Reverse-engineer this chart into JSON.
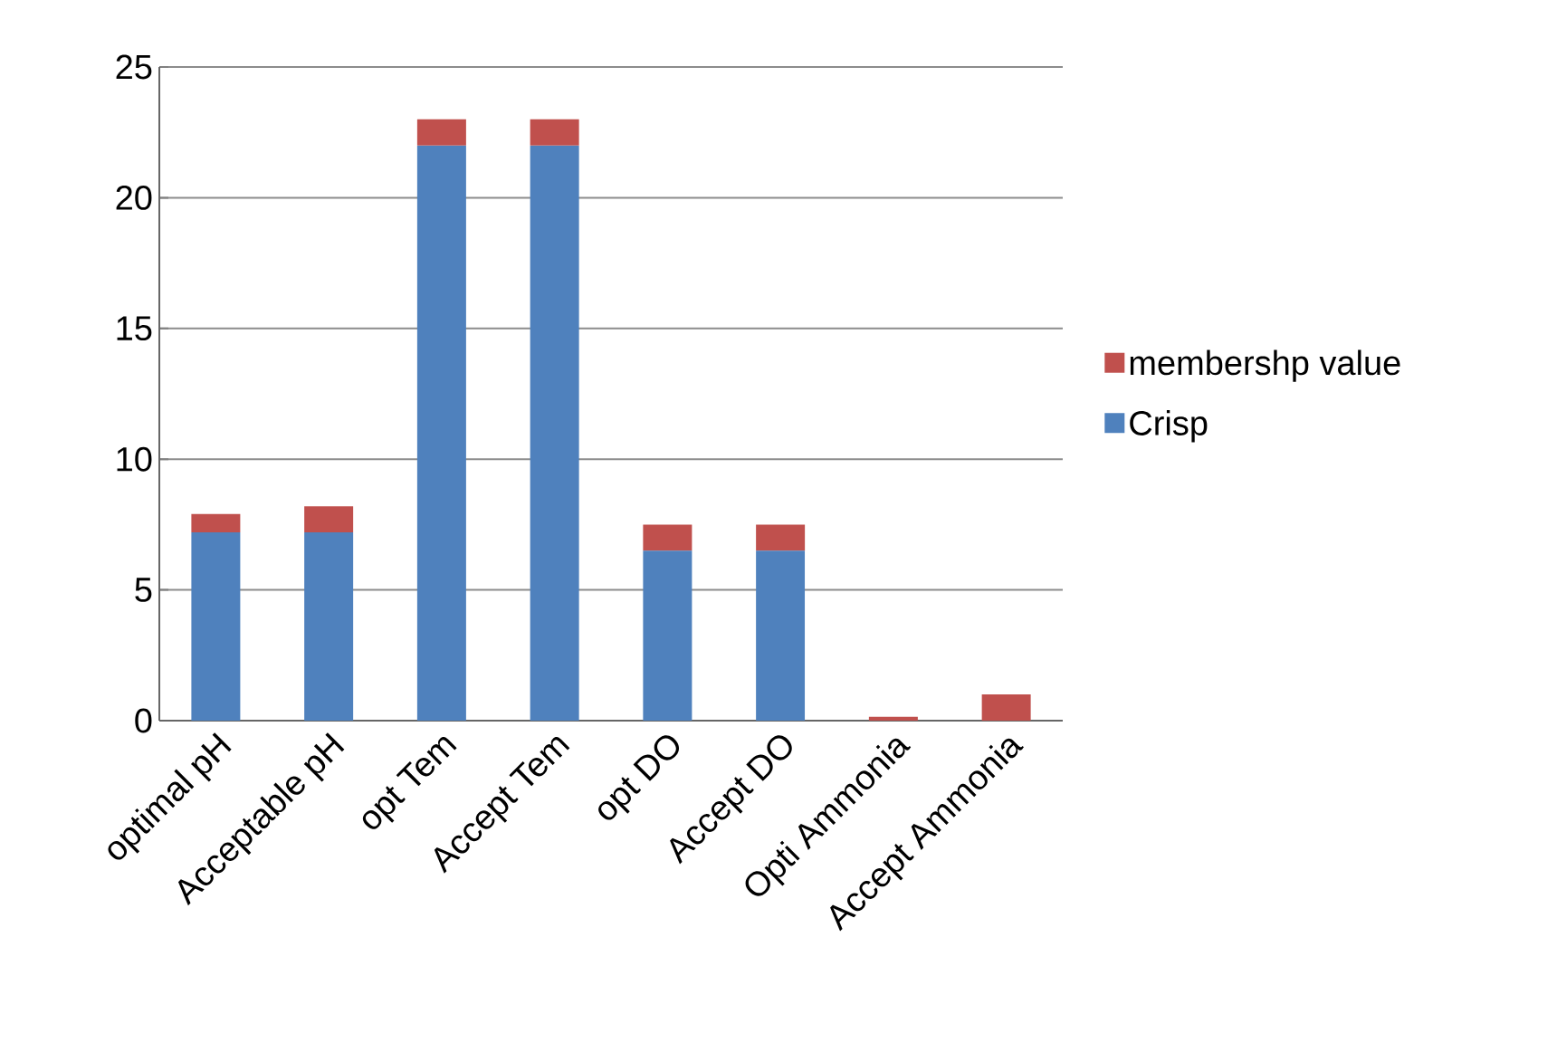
{
  "chart_data": {
    "type": "bar",
    "stacked": true,
    "categories": [
      "optimal pH",
      "Acceptable pH",
      "opt Tem",
      "Accept Tem",
      "opt DO",
      "Accept DO",
      "Opti Ammonia",
      "Accept Ammonia"
    ],
    "series": [
      {
        "name": "Crisp",
        "color": "#4f81bd",
        "values": [
          7.2,
          7.2,
          22,
          22,
          6.5,
          6.5,
          0,
          0
        ]
      },
      {
        "name": "membershp value",
        "color": "#c0504d",
        "values": [
          0.7,
          1.0,
          1,
          1,
          1.0,
          1.0,
          0.15,
          1.0
        ]
      }
    ],
    "ylim": [
      0,
      25
    ],
    "yticks": [
      0,
      5,
      10,
      15,
      20,
      25
    ],
    "grid": "y",
    "legend": "right"
  }
}
